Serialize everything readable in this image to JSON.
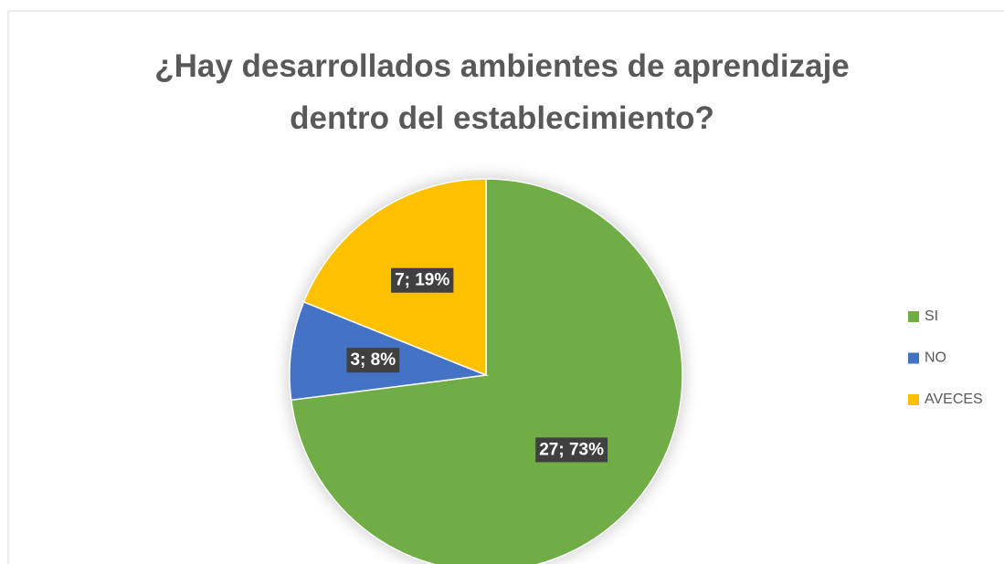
{
  "chart_data": {
    "type": "pie",
    "title": "¿Hay desarrollados ambientes de aprendizaje dentro del establecimiento?",
    "categories": [
      "SI",
      "NO",
      "AVECES"
    ],
    "values": [
      27,
      3,
      7
    ],
    "value_labels": [
      "27; 73%",
      "3; 8%",
      "7; 19%"
    ],
    "colors": [
      "#70ad47",
      "#4472c4",
      "#ffc000"
    ],
    "legend": "right"
  }
}
